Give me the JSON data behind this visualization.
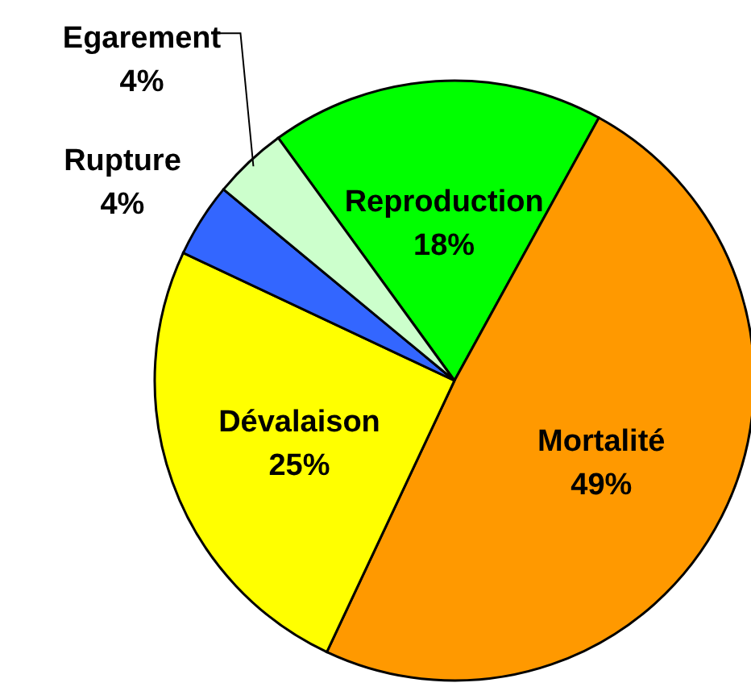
{
  "chart_data": {
    "type": "pie",
    "categories": [
      "Reproduction",
      "Mortalité",
      "Dévalaison",
      "Rupture",
      "Egarement"
    ],
    "values": [
      18,
      49,
      25,
      4,
      4
    ],
    "colors": [
      "#00ff00",
      "#ff9900",
      "#ffff00",
      "#3366ff",
      "#ccffcc"
    ],
    "value_labels": [
      "18%",
      "49%",
      "25%",
      "4%",
      "4%"
    ]
  }
}
